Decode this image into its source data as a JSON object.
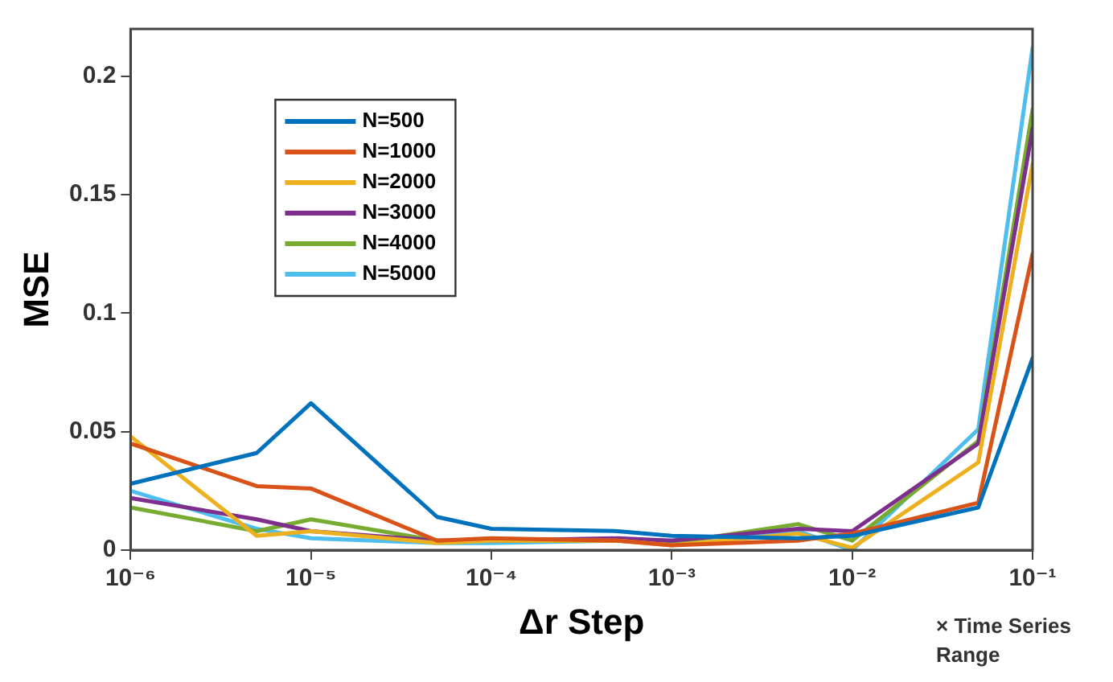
{
  "chart_data": {
    "type": "line",
    "xlabel": "Δr Step",
    "ylabel": "MSE",
    "log": "x",
    "x": [
      1e-06,
      5e-06,
      1e-05,
      5e-05,
      0.0001,
      0.0005,
      0.001,
      0.005,
      0.01,
      0.05,
      0.1
    ],
    "series": [
      {
        "name": "N=500",
        "color": "#0072bd",
        "values": [
          0.028,
          0.041,
          0.062,
          0.014,
          0.009,
          0.008,
          0.006,
          0.005,
          0.006,
          0.018,
          0.081
        ]
      },
      {
        "name": "N=1000",
        "color": "#d95319",
        "values": [
          0.045,
          0.027,
          0.026,
          0.004,
          0.005,
          0.004,
          0.002,
          0.004,
          0.007,
          0.02,
          0.125
        ]
      },
      {
        "name": "N=2000",
        "color": "#edb120",
        "values": [
          0.048,
          0.006,
          0.008,
          0.003,
          0.004,
          0.004,
          0.002,
          0.007,
          0.001,
          0.037,
          0.163
        ]
      },
      {
        "name": "N=3000",
        "color": "#7e2f8e",
        "values": [
          0.022,
          0.013,
          0.008,
          0.004,
          0.004,
          0.005,
          0.004,
          0.009,
          0.008,
          0.045,
          0.178
        ]
      },
      {
        "name": "N=4000",
        "color": "#77ac30",
        "values": [
          0.018,
          0.008,
          0.013,
          0.004,
          0.004,
          0.004,
          0.003,
          0.011,
          0.004,
          0.046,
          0.186
        ]
      },
      {
        "name": "N=5000",
        "color": "#4dbeee",
        "values": [
          0.025,
          0.009,
          0.005,
          0.003,
          0.003,
          0.004,
          0.004,
          0.008,
          0.0,
          0.051,
          0.212
        ]
      }
    ],
    "xlim": [
      1e-06,
      0.1
    ],
    "xticks": [
      {
        "value": 1e-06,
        "label": "10⁻⁶"
      },
      {
        "value": 1e-05,
        "label": "10⁻⁵"
      },
      {
        "value": 0.0001,
        "label": "10⁻⁴"
      },
      {
        "value": 0.001,
        "label": "10⁻³"
      },
      {
        "value": 0.01,
        "label": "10⁻²"
      },
      {
        "value": 0.1,
        "label": "10⁻¹"
      }
    ],
    "ylim": [
      0,
      0.22
    ],
    "yticks": [
      0,
      0.05,
      0.1,
      0.15,
      0.2
    ],
    "grid": false,
    "legend": "top left",
    "marker": "none",
    "line_style": "solid",
    "annotations": [
      "× Time Series Range"
    ]
  }
}
